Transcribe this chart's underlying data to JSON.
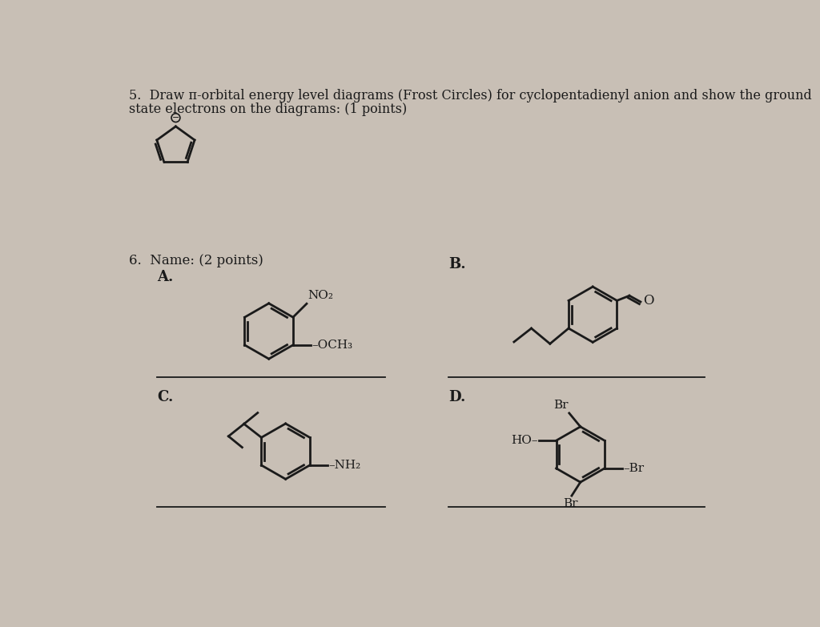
{
  "background_color": "#c8bfb5",
  "text_color": "#1a1a1a",
  "title_q5": "5.  Draw π-orbital energy level diagrams (Frost Circles) for cyclopentadienyl anion and show the ground",
  "title_q5_line2": "state electrons on the diagrams: (1 points)",
  "title_q6": "6.  Name: (2 points)",
  "label_A": "A.",
  "label_B": "B.",
  "label_C": "C.",
  "label_D": "D."
}
